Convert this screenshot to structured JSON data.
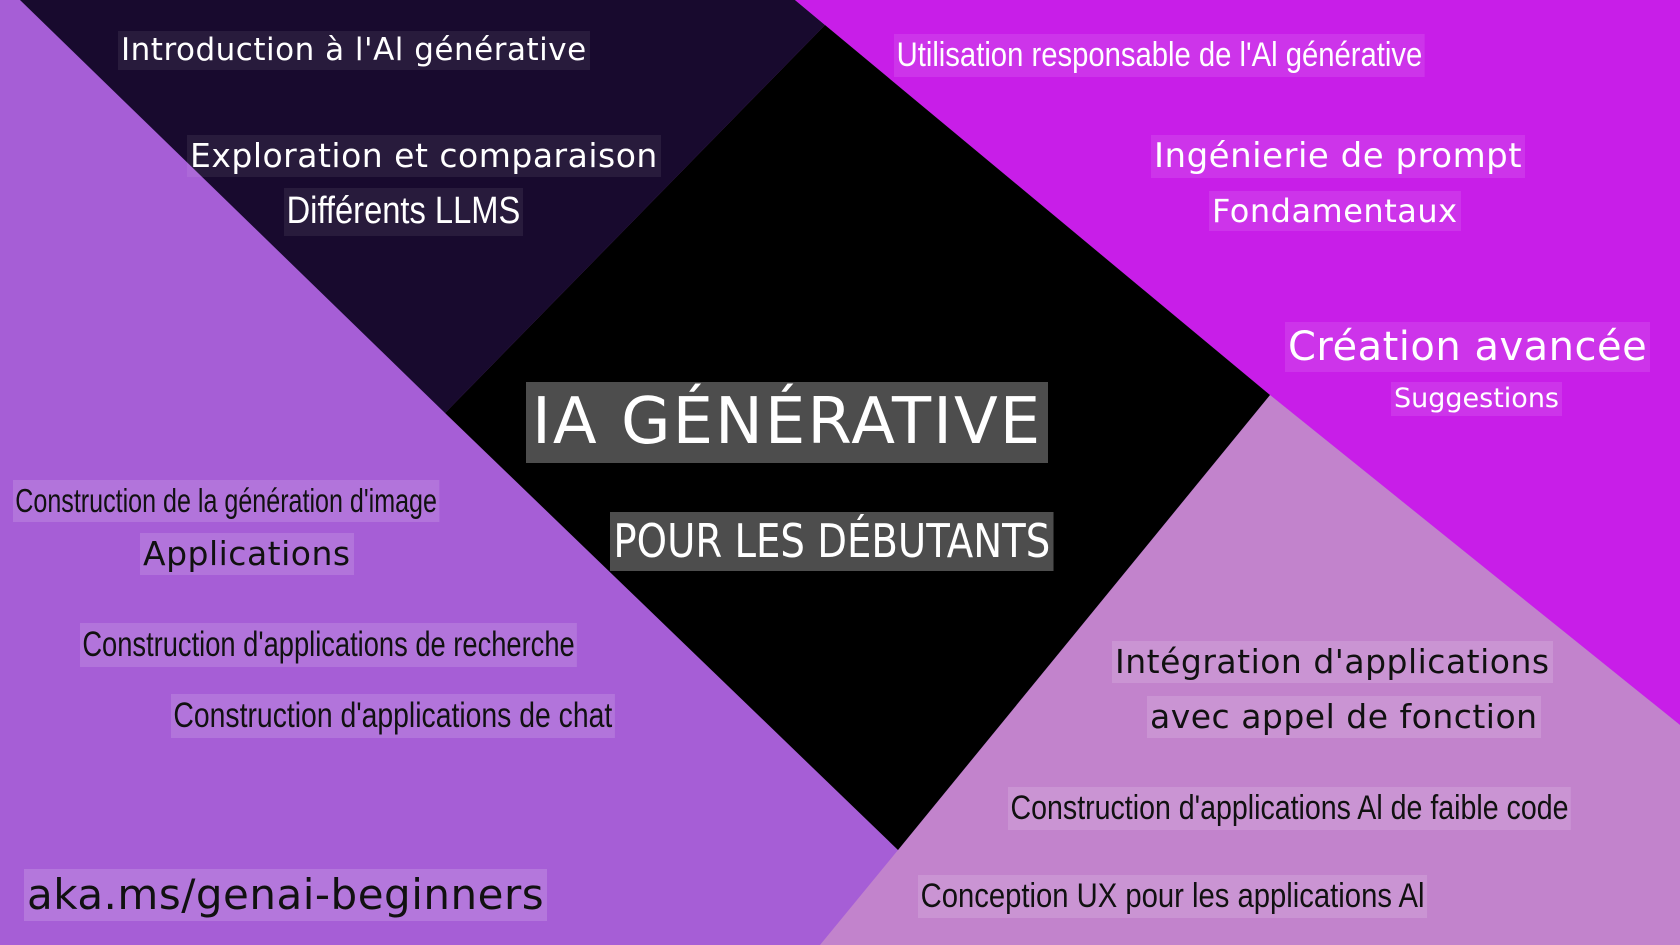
{
  "colors": {
    "dark_quadrant": "#180a2e",
    "magenta_quadrant": "#c81ee8",
    "purple_quadrant": "#a65ed6",
    "pink_quadrant": "#c283cc",
    "center_diamond": "#000000"
  },
  "center": {
    "title": "IA GÉNÉRATIVE",
    "subtitle": "POUR LES DÉBUTANTS"
  },
  "top_left": {
    "intro": "Introduction à l'Al générative",
    "explore_line1": "Exploration et comparaison",
    "explore_line2": "Différents LLMS"
  },
  "top_right": {
    "responsible": "Utilisation responsable de l'Al générative",
    "prompt_line1": "Ingénierie de prompt",
    "prompt_line2": "Fondamentaux",
    "advanced_line1": "Création avancée",
    "advanced_line2": "Suggestions"
  },
  "bottom_left": {
    "image_line1": "Construction de la génération d'image",
    "image_line2": "Applications",
    "search": "Construction d'applications de recherche",
    "chat": "Construction d'applications de chat",
    "link": "aka.ms/genai-beginners"
  },
  "bottom_right": {
    "integration_line1": "Intégration d'applications",
    "integration_line2": "avec appel de fonction",
    "lowcode": "Construction d'applications Al de faible code",
    "ux": "Conception UX pour les applications Al"
  }
}
